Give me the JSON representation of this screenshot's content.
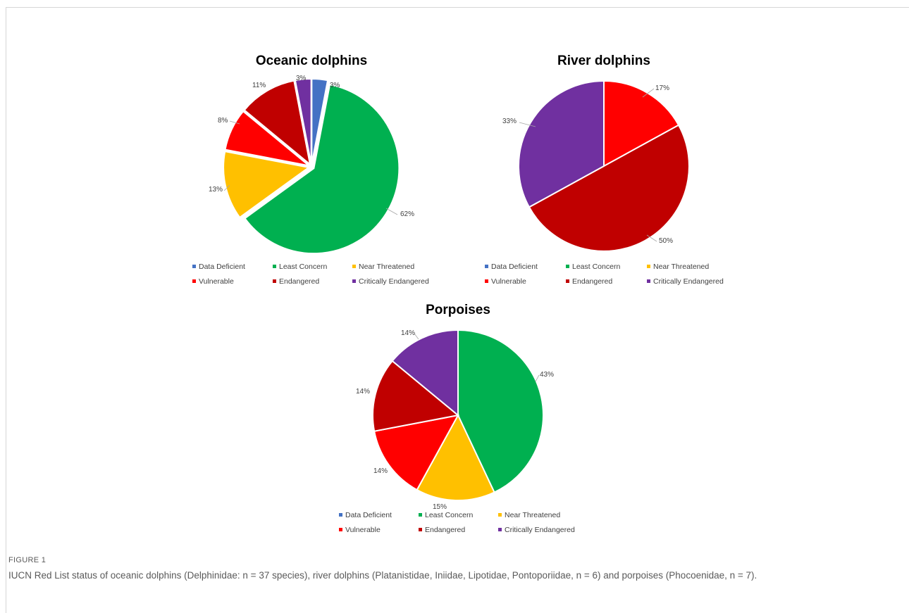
{
  "colors": {
    "Data Deficient": "#4472c4",
    "Least Concern": "#00b050",
    "Near Threatened": "#ffc000",
    "Vulnerable": "#ff0000",
    "Endangered": "#c00000",
    "Critically Endangered": "#7030a0"
  },
  "chart_data": [
    {
      "type": "pie",
      "title": "Oceanic dolphins",
      "categories": [
        "Data Deficient",
        "Least Concern",
        "Near Threatened",
        "Vulnerable",
        "Endangered",
        "Critically Endangered"
      ],
      "values": [
        3,
        62,
        13,
        8,
        11,
        3
      ],
      "data_labels": [
        "3%",
        "62%",
        "13%",
        "8%",
        "11%",
        "3%"
      ],
      "exploded": true,
      "legend": "bottom"
    },
    {
      "type": "pie",
      "title": "River dolphins",
      "categories": [
        "Data Deficient",
        "Least Concern",
        "Near Threatened",
        "Vulnerable",
        "Endangered",
        "Critically Endangered"
      ],
      "values": [
        0,
        0,
        0,
        17,
        50,
        33
      ],
      "data_labels": [
        "",
        "",
        "",
        "17%",
        "50%",
        "33%"
      ],
      "exploded": false,
      "legend": "bottom"
    },
    {
      "type": "pie",
      "title": "Porpoises",
      "categories": [
        "Data Deficient",
        "Least Concern",
        "Near Threatened",
        "Vulnerable",
        "Endangered",
        "Critically Endangered"
      ],
      "values": [
        0,
        43,
        15,
        14,
        14,
        14
      ],
      "data_labels": [
        "",
        "43%",
        "15%",
        "14%",
        "14%",
        "14%"
      ],
      "exploded": false,
      "legend": "bottom"
    }
  ],
  "caption": {
    "label": "FIGURE 1",
    "text": "IUCN Red List status of oceanic dolphins (Delphinidae: n = 37 species), river dolphins (Platanistidae, Iniidae, Lipotidae, Pontoporiidae, n = 6) and porpoises (Phocoenidae, n = 7)."
  }
}
